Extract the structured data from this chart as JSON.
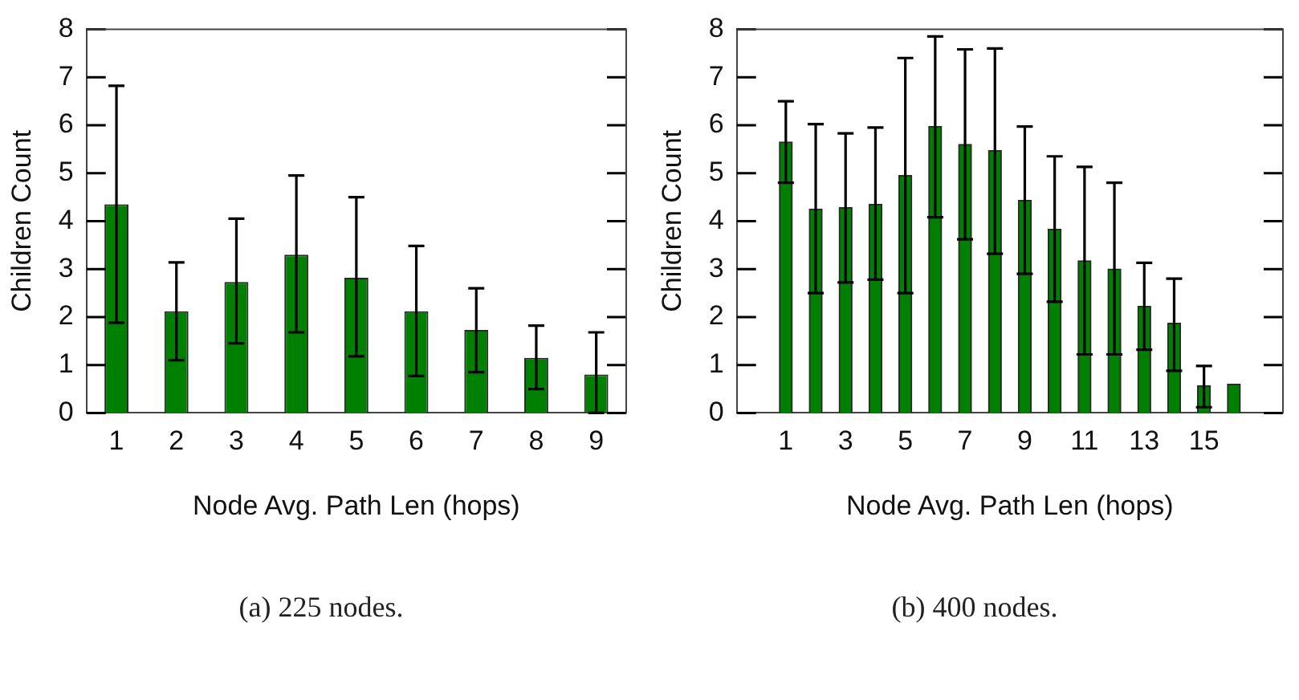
{
  "chart_data": [
    {
      "type": "bar",
      "categories": [
        "1",
        "2",
        "3",
        "4",
        "5",
        "6",
        "7",
        "8",
        "9"
      ],
      "xlabel": "Node Avg. Path Len (hops)",
      "ylabel": "Children Count",
      "ylim": [
        0,
        8
      ],
      "yticks": [
        0,
        1,
        2,
        3,
        4,
        5,
        6,
        7,
        8
      ],
      "grid": false,
      "legend": false,
      "series": [
        {
          "color": "#008000",
          "values": [
            4.35,
            2.12,
            2.73,
            3.3,
            2.82,
            2.12,
            1.73,
            1.15,
            0.8
          ],
          "errors": [
            [
              1.88,
              6.82
            ],
            [
              1.1,
              3.14
            ],
            [
              1.45,
              4.05
            ],
            [
              1.68,
              4.95
            ],
            [
              1.18,
              4.5
            ],
            [
              0.77,
              3.48
            ],
            [
              0.85,
              2.6
            ],
            [
              0.5,
              1.82
            ],
            [
              0,
              1.68
            ]
          ]
        }
      ],
      "annotations": [
        "(a) 225 nodes."
      ]
    },
    {
      "type": "bar",
      "x": [
        1,
        2,
        3,
        4,
        5,
        6,
        7,
        8,
        9,
        10,
        11,
        12,
        13,
        14,
        15,
        16
      ],
      "xlim": [
        0.5,
        16.5
      ],
      "xticks": [
        1,
        3,
        5,
        7,
        9,
        11,
        13,
        15
      ],
      "xlabel": "Node Avg. Path Len (hops)",
      "ylabel": "Children Count",
      "ylim": [
        0,
        8
      ],
      "yticks": [
        0,
        1,
        2,
        3,
        4,
        5,
        6,
        7,
        8
      ],
      "grid": false,
      "legend": false,
      "series": [
        {
          "color": "#008000",
          "values": [
            5.65,
            4.25,
            4.28,
            4.35,
            4.95,
            5.97,
            5.6,
            5.47,
            4.43,
            3.83,
            3.17,
            3.0,
            2.22,
            1.87,
            0.57,
            0.6
          ],
          "errors": [
            [
              4.8,
              6.5
            ],
            [
              2.5,
              6.02
            ],
            [
              2.72,
              5.83
            ],
            [
              2.78,
              5.95
            ],
            [
              2.5,
              7.4
            ],
            [
              4.08,
              7.85
            ],
            [
              3.62,
              7.58
            ],
            [
              3.32,
              7.6
            ],
            [
              2.9,
              5.97
            ],
            [
              2.32,
              5.35
            ],
            [
              1.22,
              5.13
            ],
            [
              1.22,
              4.8
            ],
            [
              1.32,
              3.13
            ],
            [
              0.88,
              2.8
            ],
            [
              0.12,
              0.98
            ],
            null
          ]
        }
      ],
      "annotations": [
        "(b) 400 nodes."
      ]
    }
  ]
}
